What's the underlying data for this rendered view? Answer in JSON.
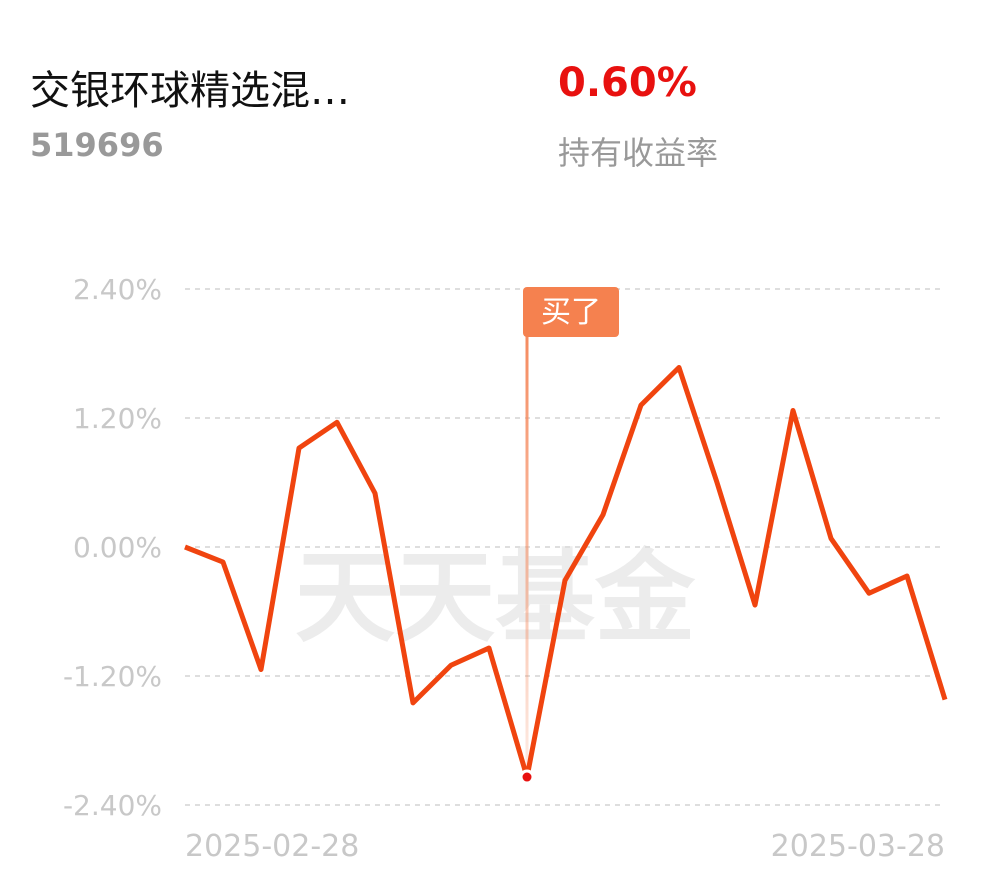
{
  "header": {
    "fund_name": "交银环球精选混…",
    "fund_code": "519696",
    "return_value": "0.60%",
    "return_label": "持有收益率"
  },
  "chart_data": {
    "type": "line",
    "watermark": "天天基金",
    "annotation": "买了",
    "categories": [
      "2025-02-28",
      null,
      null,
      null,
      null,
      null,
      null,
      null,
      null,
      null,
      null,
      null,
      null,
      null,
      null,
      null,
      null,
      null,
      null,
      null,
      "2025-03-28"
    ],
    "series": [
      {
        "color": "#f0440f",
        "values": [
          0.0,
          -0.14,
          -1.14,
          0.92,
          1.16,
          0.5,
          -1.45,
          -1.1,
          -0.94,
          -2.14,
          -0.31,
          0.3,
          1.32,
          1.67,
          0.6,
          -0.54,
          1.27,
          0.08,
          -0.43,
          -0.27,
          -1.42
        ]
      }
    ],
    "ylim": [
      -2.4,
      2.4
    ],
    "yticks": [
      {
        "value": 2.4,
        "label": "2.40%"
      },
      {
        "value": 1.2,
        "label": "1.20%"
      },
      {
        "value": 0,
        "label": "0.00%"
      },
      {
        "value": -1.2,
        "label": "-1.20%"
      },
      {
        "value": -2.4,
        "label": "-2.40%"
      }
    ],
    "grid": true
  }
}
